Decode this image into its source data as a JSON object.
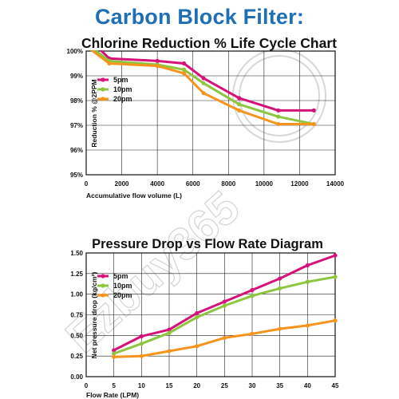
{
  "page_title": "Carbon Block Filter:",
  "watermark_text": "Ezbuy365",
  "colors": {
    "title": "#1f6fb7",
    "5pm": "#d6127a",
    "10pm": "#8cc63f",
    "20pm": "#f7941d"
  },
  "chart_data": [
    {
      "type": "line",
      "title": "Chlorine Reduction % Life Cycle Chart",
      "xlabel": "Accumulative flow volume (L)",
      "ylabel": "Reduction % @2PPM",
      "xlim": [
        0,
        14000
      ],
      "ylim": [
        95,
        100
      ],
      "xticks": [
        0,
        2000,
        4000,
        6000,
        8000,
        10000,
        12000,
        14000
      ],
      "yticks": [
        95,
        96,
        97,
        98,
        99,
        100
      ],
      "ytick_labels": [
        "95%",
        "96%",
        "97%",
        "98%",
        "99%",
        "100%"
      ],
      "grid": true,
      "legend_position": "top-left",
      "series": [
        {
          "name": "5pm",
          "color": "#d6127a",
          "x": [
            0,
            1300,
            4000,
            5500,
            6600,
            8600,
            10800,
            12800
          ],
          "y": [
            100.6,
            99.7,
            99.6,
            99.5,
            98.9,
            98.1,
            97.6,
            97.6
          ]
        },
        {
          "name": "10pm",
          "color": "#8cc63f",
          "x": [
            0,
            1300,
            4000,
            5500,
            6600,
            8600,
            10800,
            12800
          ],
          "y": [
            100.3,
            99.6,
            99.45,
            99.25,
            98.7,
            97.85,
            97.35,
            97.05
          ]
        },
        {
          "name": "20pm",
          "color": "#f7941d",
          "x": [
            0,
            1300,
            4000,
            5500,
            6600,
            8600,
            10800,
            12800
          ],
          "y": [
            100.2,
            99.5,
            99.4,
            99.1,
            98.3,
            97.6,
            97.05,
            97.05
          ]
        }
      ]
    },
    {
      "type": "line",
      "title": "Pressure Drop vs Flow Rate Diagram",
      "xlabel": "Flow Rate (LPM)",
      "ylabel": "Net pressure drop (kg/cm²)",
      "xlim": [
        0,
        45
      ],
      "ylim": [
        0,
        1.5
      ],
      "xticks": [
        0,
        5,
        10,
        15,
        20,
        25,
        30,
        35,
        40,
        45
      ],
      "yticks": [
        0,
        0.25,
        0.5,
        0.75,
        1.0,
        1.25,
        1.5
      ],
      "ytick_labels": [
        "0.00",
        "0.25",
        "0.50",
        "0.75",
        "1.00",
        "1.25",
        "1.50"
      ],
      "grid": true,
      "legend_position": "top-left",
      "series": [
        {
          "name": "5pm",
          "color": "#d6127a",
          "x": [
            5,
            10,
            15,
            20,
            25,
            30,
            35,
            40,
            45
          ],
          "y": [
            0.32,
            0.49,
            0.57,
            0.77,
            0.91,
            1.05,
            1.19,
            1.35,
            1.47
          ]
        },
        {
          "name": "10pm",
          "color": "#8cc63f",
          "x": [
            5,
            10,
            15,
            20,
            25,
            30,
            35,
            40,
            45
          ],
          "y": [
            0.28,
            0.4,
            0.53,
            0.72,
            0.86,
            0.98,
            1.07,
            1.15,
            1.21
          ]
        },
        {
          "name": "20pm",
          "color": "#f7941d",
          "x": [
            5,
            10,
            15,
            20,
            25,
            30,
            35,
            40,
            45
          ],
          "y": [
            0.24,
            0.25,
            0.31,
            0.37,
            0.47,
            0.52,
            0.58,
            0.62,
            0.68
          ]
        }
      ]
    }
  ]
}
